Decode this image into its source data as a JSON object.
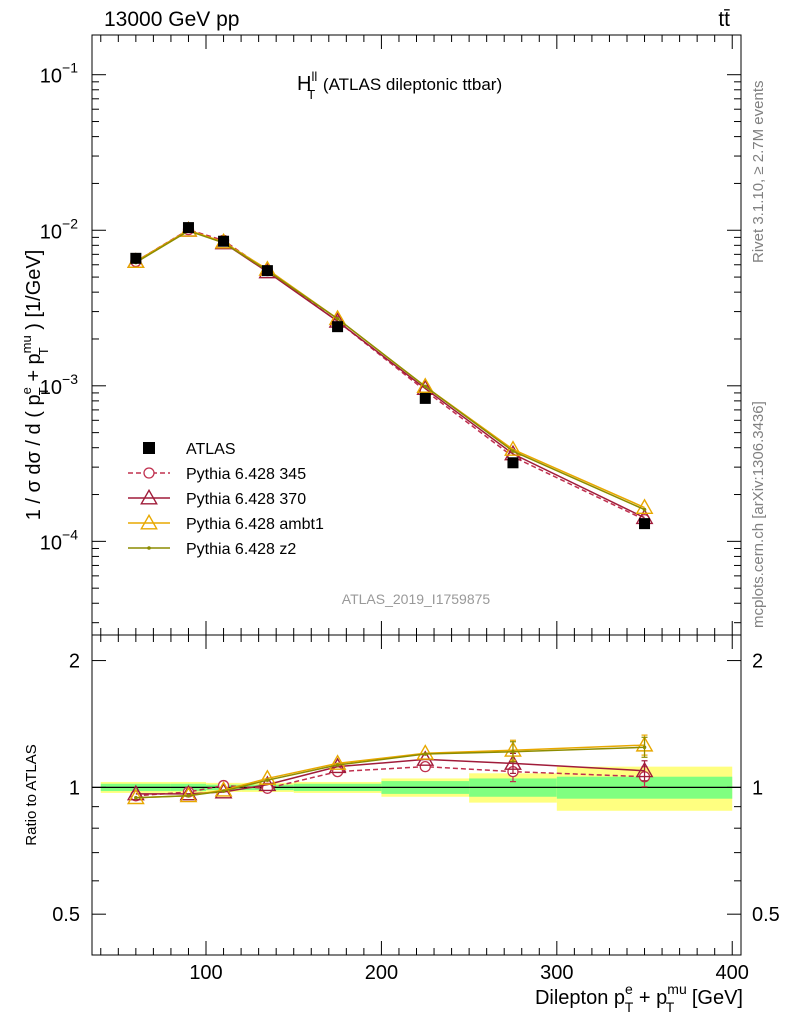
{
  "header": {
    "energy_label": "13000 GeV pp",
    "process_label": "tt̄"
  },
  "side_labels": {
    "rivet": "Rivet 3.1.10, ≥ 2.7M events",
    "mcplots": "mcplots.cern.ch [arXiv:1306.3436]"
  },
  "chart_data": {
    "type": "line",
    "title": "H_T^ll (ATLAS dileptonic ttbar)",
    "title_main": "H",
    "title_sup": "ll",
    "title_sub": "T",
    "title_rest": " (ATLAS dileptonic ttbar)",
    "analysis_id": "ATLAS_2019_I1759875",
    "xlabel": "Dilepton p_T^e + p_T^mu [GeV]",
    "xlabel_pieces": {
      "a": "Dilepton p",
      "sup1": "e",
      "sub1": "T",
      "b": " + p",
      "sup2": "mu",
      "sub2": "T",
      "c": " [GeV]"
    },
    "ylabel": "1 / σ dσ / d ( p_T^e + p_T^mu ) [1/GeV]",
    "ylabel_pieces": {
      "a": "1 / σ  dσ / d ( p",
      "sup1": "e",
      "sub1": "T",
      "b": " + p",
      "sup2": "mu",
      "sub2": "T",
      "c": " ) [1/GeV]"
    },
    "ratio_ylabel": "Ratio to ATLAS",
    "xlim": [
      35,
      405
    ],
    "ylim": [
      2.5e-05,
      0.18
    ],
    "ylog": true,
    "ratio_ylim": [
      0.4,
      2.3
    ],
    "ratio_ylog": true,
    "x_ticks": [
      100,
      200,
      300,
      400
    ],
    "y_ticks": [
      {
        "value": 0.1,
        "base": "10",
        "exp": "−1"
      },
      {
        "value": 0.01,
        "base": "10",
        "exp": "−2"
      },
      {
        "value": 0.001,
        "base": "10",
        "exp": "−3"
      },
      {
        "value": 0.0001,
        "base": "10",
        "exp": "−4"
      }
    ],
    "ratio_ticks": [
      {
        "value": 0.5,
        "label": "0.5"
      },
      {
        "value": 1,
        "label": "1"
      },
      {
        "value": 2,
        "label": "2"
      }
    ],
    "bin_edges": [
      40,
      80,
      100,
      120,
      150,
      200,
      250,
      300,
      400
    ],
    "x": [
      60,
      90,
      110,
      135,
      175,
      225,
      275,
      350
    ],
    "data": {
      "name": "ATLAS",
      "values": [
        0.0066,
        0.0104,
        0.0085,
        0.0055,
        0.0024,
        0.00083,
        0.00032,
        0.00013
      ],
      "band_green": [
        0.02,
        0.02,
        0.015,
        0.015,
        0.02,
        0.035,
        0.05,
        0.06
      ],
      "band_yellow": [
        0.03,
        0.03,
        0.025,
        0.025,
        0.03,
        0.05,
        0.08,
        0.12
      ]
    },
    "series": [
      {
        "name": "Pythia 6.428 345",
        "color": "#c0304f",
        "marker": "circle-open",
        "dash": "5,3",
        "values": [
          0.0063,
          0.0101,
          0.0086,
          0.0055,
          0.0026,
          0.00093,
          0.00035,
          0.000138
        ],
        "ratio": [
          0.955,
          0.975,
          1.01,
          0.995,
          1.09,
          1.12,
          1.09,
          1.06
        ]
      },
      {
        "name": "Pythia 6.428 370",
        "color": "#a01c3a",
        "marker": "triangle-open",
        "dash": "",
        "values": [
          0.0063,
          0.01,
          0.0083,
          0.0054,
          0.0026,
          0.00096,
          0.000365,
          0.000142
        ],
        "ratio": [
          0.965,
          0.965,
          0.975,
          1.015,
          1.12,
          1.165,
          1.14,
          1.095
        ]
      },
      {
        "name": "Pythia 6.428 ambt1",
        "color": "#e8a800",
        "marker": "triangle-open",
        "dash": "",
        "values": [
          0.0063,
          0.01,
          0.0084,
          0.0056,
          0.0027,
          0.00099,
          0.00039,
          0.000165
        ],
        "ratio": [
          0.945,
          0.955,
          0.985,
          1.05,
          1.14,
          1.205,
          1.225,
          1.26
        ]
      },
      {
        "name": "Pythia 6.428 z2",
        "color": "#8c8c00",
        "marker": "dot",
        "dash": "",
        "values": [
          0.0062,
          0.0099,
          0.0083,
          0.0055,
          0.0027,
          0.00099,
          0.00038,
          0.00016
        ],
        "ratio": [
          0.945,
          0.955,
          0.98,
          1.04,
          1.13,
          1.2,
          1.215,
          1.245
        ]
      }
    ]
  }
}
